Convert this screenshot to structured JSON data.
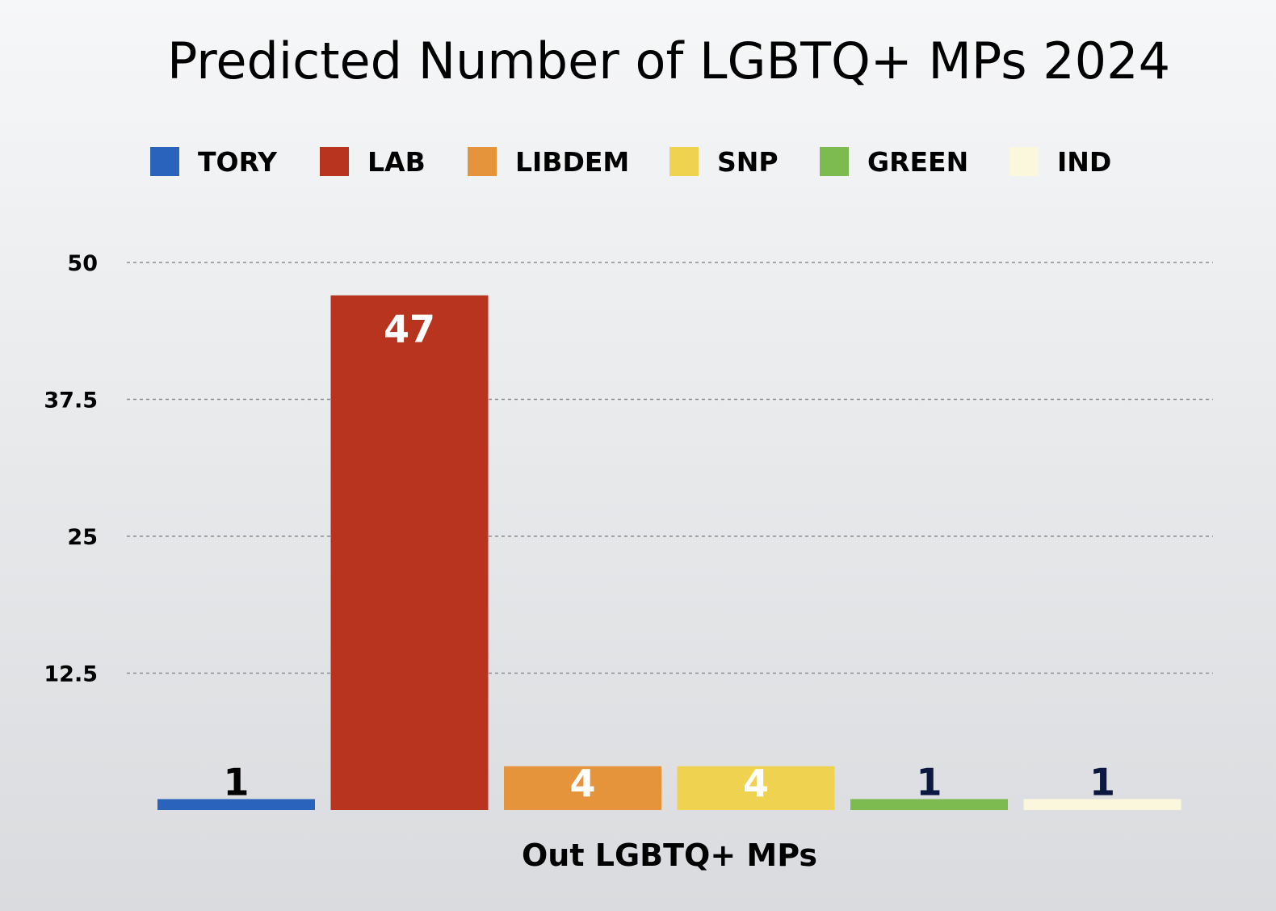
{
  "chart_data": {
    "type": "bar",
    "title": "Predicted Number of LGBTQ+ MPs 2024",
    "xlabel": "Out LGBTQ+ MPs",
    "ylabel": "",
    "ylim": [
      0,
      50
    ],
    "yticks": [
      "12.5",
      "25",
      "37.5",
      "50"
    ],
    "ytick_values": [
      12.5,
      25,
      37.5,
      50
    ],
    "grid": true,
    "legend_position": "top",
    "series": [
      {
        "name": "TORY",
        "value": 1,
        "color": "#2a63bc",
        "label_color": "#000000"
      },
      {
        "name": "LAB",
        "value": 47,
        "color": "#b8341e",
        "label_color": "#ffffff"
      },
      {
        "name": "LIBDEM",
        "value": 4,
        "color": "#e5943b",
        "label_color": "#ffffff"
      },
      {
        "name": "SNP",
        "value": 4,
        "color": "#efd250",
        "label_color": "#ffffff"
      },
      {
        "name": "GREEN",
        "value": 1,
        "color": "#7dbb50",
        "label_color": "#0c1840"
      },
      {
        "name": "IND",
        "value": 1,
        "color": "#fbf7dc",
        "label_color": "#0c1840"
      }
    ]
  }
}
